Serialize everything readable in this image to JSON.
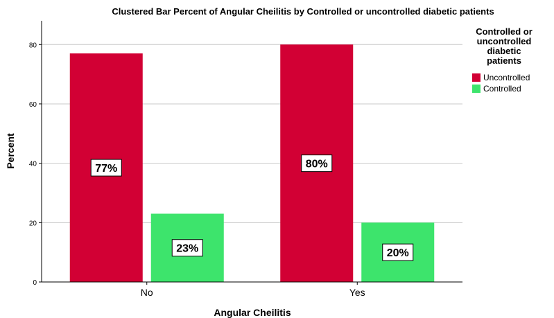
{
  "chart_data": {
    "type": "bar",
    "title": "Clustered Bar Percent of Angular Cheilitis by Controlled or uncontrolled diabetic patients",
    "xlabel": "Angular Cheilitis",
    "ylabel": "Percent",
    "categories": [
      "No",
      "Yes"
    ],
    "series": [
      {
        "name": "Uncontrolled",
        "values": [
          77,
          80
        ],
        "labels": [
          "77%",
          "80%"
        ],
        "color": "#d20034"
      },
      {
        "name": "Controlled",
        "values": [
          23,
          20
        ],
        "labels": [
          "23%",
          "20%"
        ],
        "color": "#3de46c"
      }
    ],
    "ylim": [
      0,
      88
    ],
    "yticks": [
      0,
      20,
      40,
      60,
      80
    ],
    "grid": true,
    "legend": {
      "title_lines": [
        "Controlled or",
        "uncontrolled",
        "diabetic",
        "patients"
      ],
      "placement": "right"
    }
  }
}
